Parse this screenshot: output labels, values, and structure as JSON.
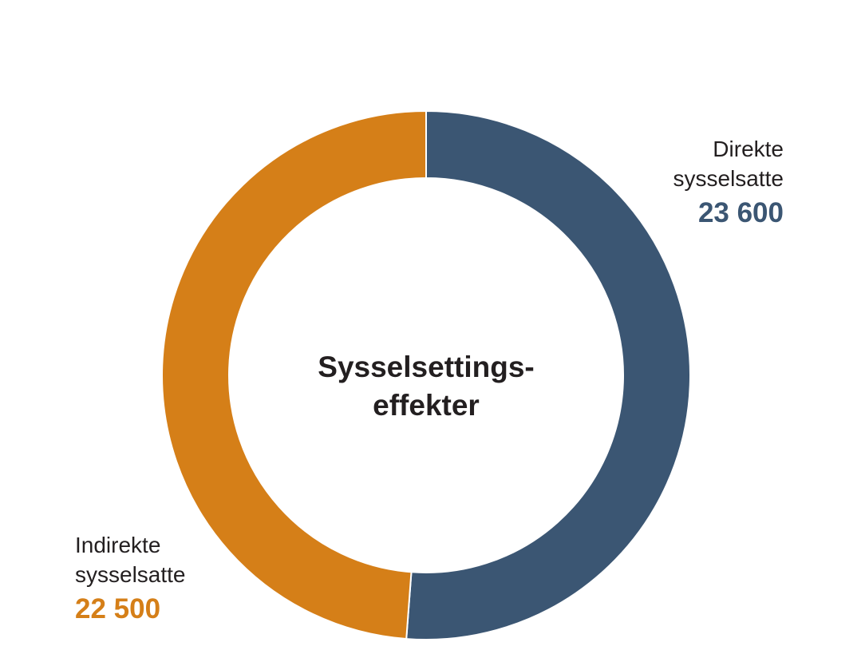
{
  "chart_data": {
    "type": "pie",
    "donut": true,
    "center_title": [
      "Sysselsettings-",
      "effekter"
    ],
    "slices": [
      {
        "label_lines": [
          "Direkte",
          "sysselsatte"
        ],
        "value": 23600,
        "value_text": "23 600",
        "color": "#3b5673"
      },
      {
        "label_lines": [
          "Indirekte",
          "sysselsatte"
        ],
        "value": 22500,
        "value_text": "22 500",
        "color": "#d57f18"
      }
    ],
    "legend": "none"
  }
}
